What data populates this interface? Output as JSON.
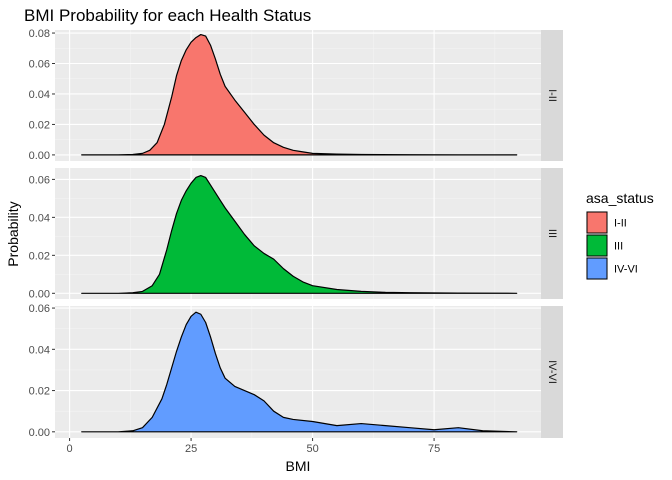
{
  "chart_data": {
    "type": "area",
    "title": "BMI Probability for each Health Status",
    "xlabel": "BMI",
    "ylabel": "Probability",
    "xlim": [
      -3,
      97
    ],
    "x_ticks": [
      0,
      25,
      50,
      75
    ],
    "x_tick_labels": [
      "0",
      "25",
      "50",
      "75"
    ],
    "grid": true,
    "legend": {
      "title": "asa_status",
      "placement": "right",
      "entries": [
        "I-II",
        "III",
        "IV-VI"
      ]
    },
    "panels": [
      {
        "name": "I-II",
        "color": "#F8766D",
        "ylim": [
          -0.004,
          0.082
        ],
        "y_ticks": [
          0,
          0.02,
          0.04,
          0.06,
          0.08
        ],
        "y_tick_labels": [
          "0.00",
          "0.02",
          "0.04",
          "0.06",
          "0.08"
        ],
        "x": [
          2.5,
          10,
          13,
          15,
          16.5,
          18,
          19.5,
          21,
          22,
          23,
          24,
          25,
          26,
          27,
          28,
          29,
          30,
          31,
          32,
          34,
          36,
          37,
          38,
          40,
          42,
          44,
          46,
          48,
          50,
          55,
          60,
          70,
          80,
          92
        ],
        "y": [
          0,
          0,
          0.0003,
          0.001,
          0.003,
          0.008,
          0.02,
          0.038,
          0.052,
          0.062,
          0.069,
          0.074,
          0.077,
          0.079,
          0.078,
          0.072,
          0.063,
          0.053,
          0.045,
          0.036,
          0.028,
          0.024,
          0.02,
          0.013,
          0.008,
          0.005,
          0.003,
          0.002,
          0.001,
          0.0005,
          0.0003,
          0.0001,
          0,
          0
        ]
      },
      {
        "name": "III",
        "color": "#00BA38",
        "ylim": [
          -0.003,
          0.066
        ],
        "y_ticks": [
          0,
          0.02,
          0.04,
          0.06
        ],
        "y_tick_labels": [
          "0.00",
          "0.02",
          "0.04",
          "0.06"
        ],
        "x": [
          2.5,
          10,
          13,
          15,
          17,
          18.5,
          20,
          21,
          22,
          23,
          24,
          25,
          26,
          27,
          28,
          29,
          30,
          31,
          32,
          34,
          36,
          38,
          40,
          42,
          44,
          46,
          48,
          50,
          55,
          60,
          65,
          70,
          80,
          92
        ],
        "y": [
          0,
          0,
          0.0003,
          0.001,
          0.004,
          0.01,
          0.023,
          0.033,
          0.042,
          0.049,
          0.054,
          0.058,
          0.061,
          0.062,
          0.061,
          0.057,
          0.053,
          0.049,
          0.045,
          0.038,
          0.031,
          0.025,
          0.021,
          0.018,
          0.013,
          0.009,
          0.006,
          0.004,
          0.002,
          0.001,
          0.0005,
          0.0003,
          0.0001,
          0
        ]
      },
      {
        "name": "IV-VI",
        "color": "#619CFF",
        "ylim": [
          -0.003,
          0.061
        ],
        "y_ticks": [
          0,
          0.02,
          0.04,
          0.06
        ],
        "y_tick_labels": [
          "0.00",
          "0.02",
          "0.04",
          "0.06"
        ],
        "x": [
          2.5,
          10,
          13,
          15,
          17,
          19,
          20,
          21,
          22,
          23,
          24,
          25,
          26,
          27,
          28,
          29,
          30,
          31,
          32,
          34,
          36,
          38,
          40,
          42,
          44,
          46,
          50,
          55,
          60,
          65,
          70,
          75,
          80,
          85,
          92
        ],
        "y": [
          0,
          0,
          0.0005,
          0.002,
          0.007,
          0.016,
          0.023,
          0.031,
          0.039,
          0.046,
          0.052,
          0.056,
          0.058,
          0.057,
          0.053,
          0.046,
          0.038,
          0.031,
          0.026,
          0.022,
          0.02,
          0.018,
          0.015,
          0.01,
          0.007,
          0.006,
          0.005,
          0.003,
          0.004,
          0.003,
          0.002,
          0.001,
          0.002,
          0.0005,
          0
        ]
      }
    ]
  }
}
